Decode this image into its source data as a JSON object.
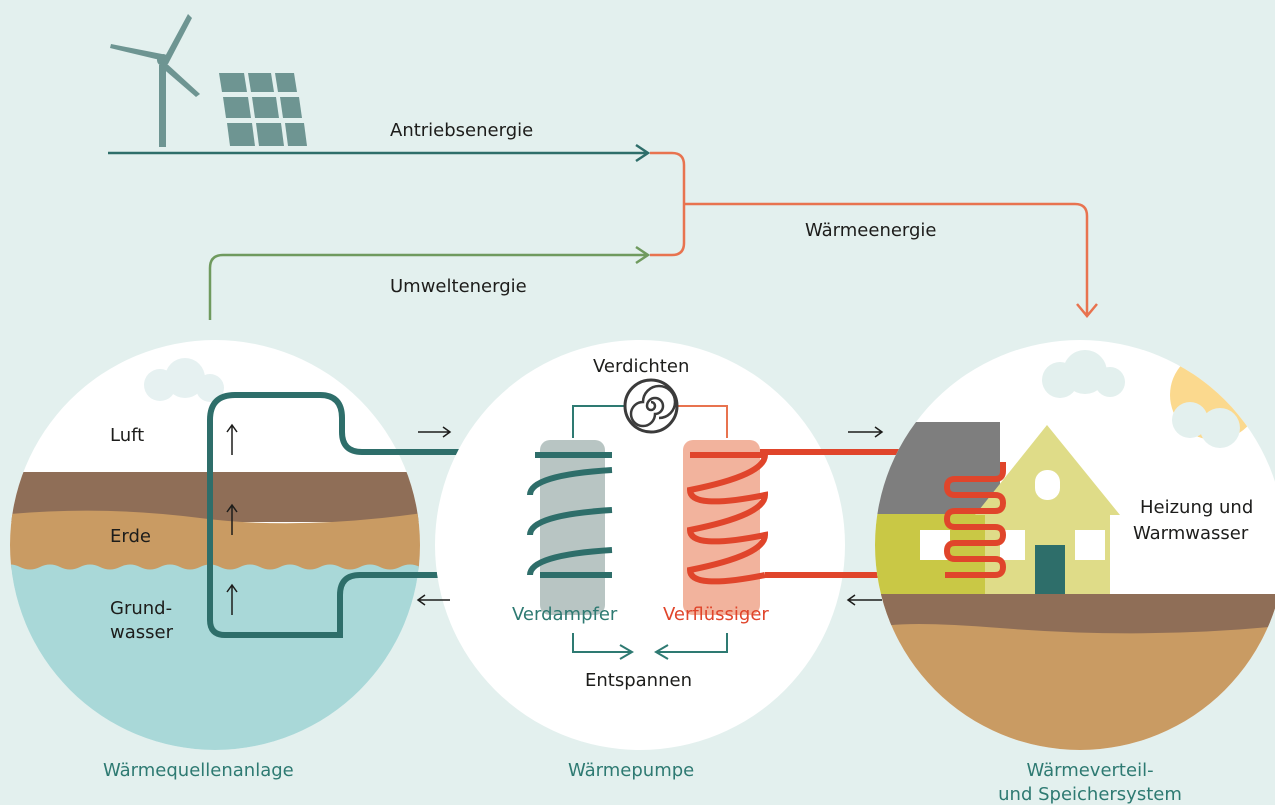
{
  "labels": {
    "drive_energy": "Antriebsenergie",
    "environment_energy": "Umweltenergie",
    "heat_energy": "Wärmeenergie",
    "compress": "Verdichten",
    "air": "Luft",
    "soil": "Erde",
    "groundwater": [
      "Grund-",
      "wasser"
    ],
    "evaporator": "Verdampfer",
    "condenser": "Verflüssiger",
    "expand": "Entspannen",
    "heating": [
      "Heizung und",
      "Warmwasser"
    ],
    "source_system": "Wärmequellenanlage",
    "heat_pump": "Wärmepumpe",
    "distribution": [
      "Wärmeverteil-",
      "und Speichersystem"
    ]
  }
}
